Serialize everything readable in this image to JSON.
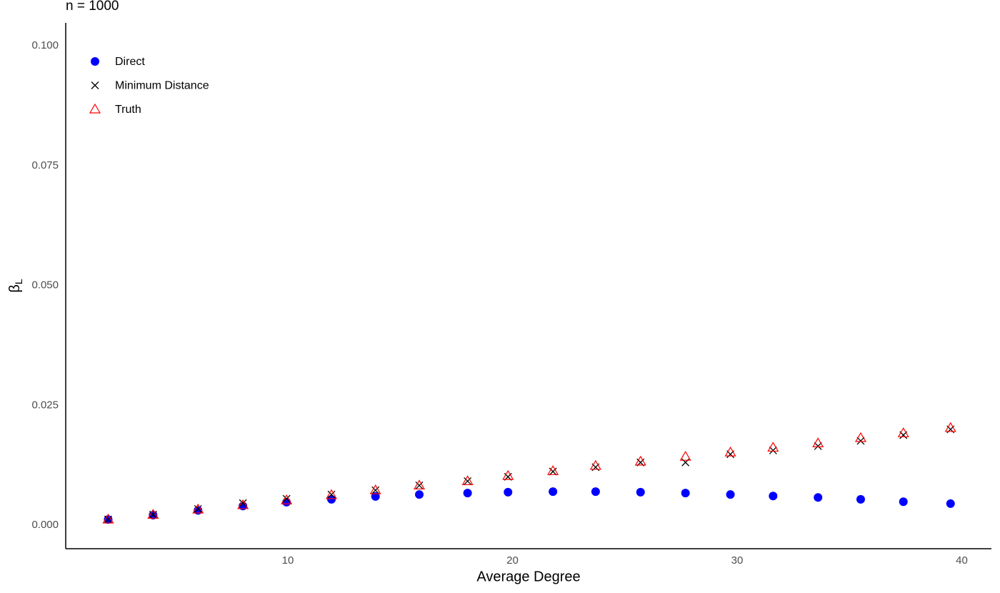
{
  "chart_data": {
    "type": "scatter",
    "title": "n = 1000",
    "x_label": "Average Degree",
    "y_label": "β",
    "y_label_subscript": "L",
    "xlim": [
      0.11,
      41.32
    ],
    "ylim": [
      -0.0049,
      0.1048
    ],
    "xticks": [
      10,
      20,
      30,
      40
    ],
    "yticks": [
      {
        "value": 0,
        "label": "0.000"
      },
      {
        "value": 0.025,
        "label": "0.025"
      },
      {
        "value": 0.05,
        "label": "0.050"
      },
      {
        "value": 0.075,
        "label": "0.075"
      },
      {
        "value": 0.1,
        "label": "0.100"
      }
    ],
    "grid": false,
    "legend": "top-left",
    "x": [
      2,
      4,
      6,
      8,
      9.94,
      11.94,
      13.9,
      15.85,
      18,
      19.8,
      21.8,
      23.7,
      25.7,
      27.7,
      29.7,
      31.6,
      33.6,
      35.5,
      37.4,
      39.5
    ],
    "series": [
      {
        "name": "Direct",
        "color": "#0000ff",
        "marker": "circle",
        "values": [
          0.0012,
          0.0021,
          0.0031,
          0.004,
          0.0048,
          0.0054,
          0.006,
          0.0064,
          0.0067,
          0.0069,
          0.007,
          0.007,
          0.0069,
          0.0067,
          0.0064,
          0.0061,
          0.0058,
          0.0054,
          0.0049,
          0.0045
        ]
      },
      {
        "name": "Minimum Distance",
        "color": "#000000",
        "marker": "cross",
        "values": [
          0.0012,
          0.0022,
          0.0034,
          0.0046,
          0.0055,
          0.0064,
          0.0073,
          0.0083,
          0.0092,
          0.0101,
          0.0112,
          0.0121,
          0.0131,
          0.0131,
          0.0148,
          0.0156,
          0.0165,
          0.0176,
          0.0188,
          0.02
        ]
      },
      {
        "name": "Truth",
        "color": "#ff0000",
        "marker": "triangle",
        "values": [
          0.0012,
          0.0022,
          0.0033,
          0.0042,
          0.0052,
          0.0063,
          0.0073,
          0.0083,
          0.0092,
          0.0103,
          0.0113,
          0.0124,
          0.0133,
          0.0143,
          0.0152,
          0.0162,
          0.0171,
          0.0182,
          0.0192,
          0.0203
        ]
      }
    ]
  }
}
